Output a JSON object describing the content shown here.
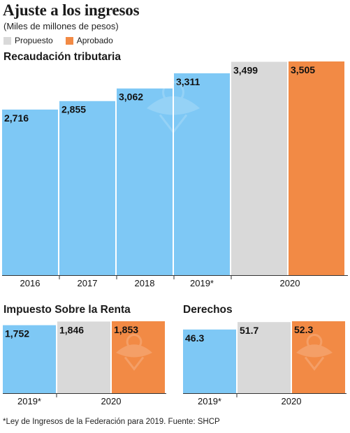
{
  "header": {
    "title": "Ajuste a los ingresos",
    "subtitle": "(Miles de millones de pesos)"
  },
  "legend": [
    {
      "label": "Propuesto",
      "color": "#d9d9d9"
    },
    {
      "label": "Aprobado",
      "color": "#f28a45"
    }
  ],
  "colors": {
    "historical": "#7ec8f5",
    "propuesto": "#d9d9d9",
    "aprobado": "#f28a45"
  },
  "footnote": "*Ley de Ingresos de la Federación para 2019. Fuente: SHCP",
  "chart_data": [
    {
      "type": "bar",
      "title": "Recaudación tributaria",
      "categories": [
        "2016",
        "2017",
        "2018",
        "2019*",
        "2020",
        "2020"
      ],
      "tick_labels": [
        "2016",
        "2017",
        "2018",
        "2019*",
        "2020"
      ],
      "bars": [
        {
          "category": "2016",
          "value": 2716,
          "label": "2,716",
          "kind": "historical"
        },
        {
          "category": "2017",
          "value": 2855,
          "label": "2,855",
          "kind": "historical"
        },
        {
          "category": "2018",
          "value": 3062,
          "label": "3,062",
          "kind": "historical"
        },
        {
          "category": "2019*",
          "value": 3311,
          "label": "3,311",
          "kind": "historical"
        },
        {
          "category": "2020",
          "value": 3499,
          "label": "3,499",
          "kind": "propuesto"
        },
        {
          "category": "2020",
          "value": 3505,
          "label": "3,505",
          "kind": "aprobado"
        }
      ],
      "ylim": [
        0,
        3505
      ]
    },
    {
      "type": "bar",
      "title": "Impuesto Sobre la Renta",
      "tick_labels": [
        "2019*",
        "2020"
      ],
      "bars": [
        {
          "category": "2019*",
          "value": 1752,
          "label": "1,752",
          "kind": "historical"
        },
        {
          "category": "2020",
          "value": 1846,
          "label": "1,846",
          "kind": "propuesto"
        },
        {
          "category": "2020",
          "value": 1853,
          "label": "1,853",
          "kind": "aprobado"
        }
      ],
      "ylim": [
        0,
        1853
      ]
    },
    {
      "type": "bar",
      "title": "Derechos",
      "tick_labels": [
        "2019*",
        "2020"
      ],
      "bars": [
        {
          "category": "2019*",
          "value": 46.3,
          "label": "46.3",
          "kind": "historical"
        },
        {
          "category": "2020",
          "value": 51.7,
          "label": "51.7",
          "kind": "propuesto"
        },
        {
          "category": "2020",
          "value": 52.3,
          "label": "52.3",
          "kind": "aprobado"
        }
      ],
      "ylim": [
        0,
        52.3
      ]
    }
  ]
}
